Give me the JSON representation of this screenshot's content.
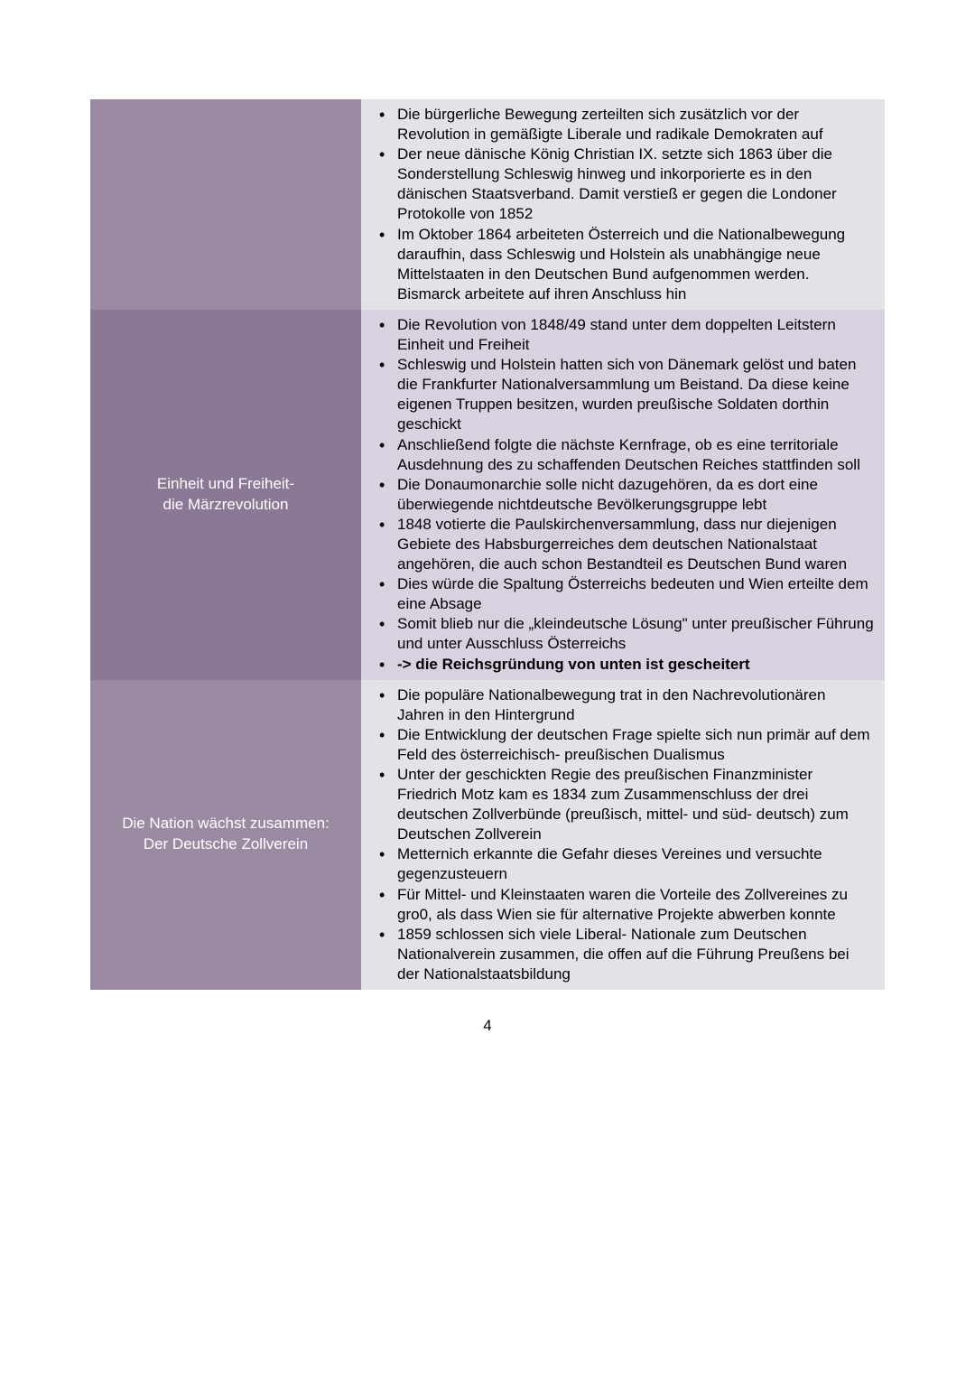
{
  "colors": {
    "row_a_left": "#9b8ba2",
    "row_a_right": "#e5e1e9",
    "row_b_left": "#8a7894",
    "row_b_right": "#d8d1df",
    "left_text": "#ffffff",
    "right_text": "#000000",
    "page_bg": "#ffffff"
  },
  "page_number": "4",
  "rows": [
    {
      "heading_lines": [],
      "bullets": [
        {
          "text": "Die bürgerliche Bewegung zerteilten sich zusätzlich vor der Revolution in gemäßigte Liberale und radikale Demokraten auf",
          "bold": false
        },
        {
          "text": "Der neue dänische König Christian IX. setzte sich 1863 über die Sonderstellung Schleswig hinweg und inkorporierte es in den dänischen Staatsverband. Damit verstieß er gegen die Londoner Protokolle von 1852",
          "bold": false
        },
        {
          "text": "Im Oktober 1864 arbeiteten Österreich und die Nationalbewegung daraufhin, dass Schleswig und Holstein als unabhängige neue Mittelstaaten in den Deutschen Bund aufgenommen werden. Bismarck arbeitete auf ihren Anschluss hin",
          "bold": false
        }
      ]
    },
    {
      "heading_lines": [
        "Einheit und Freiheit-",
        "die Märzrevolution"
      ],
      "bullets": [
        {
          "text": "Die Revolution von 1848/49 stand unter dem doppelten Leitstern Einheit und Freiheit",
          "bold": false
        },
        {
          "text": "Schleswig und Holstein hatten sich von Dänemark gelöst und baten die Frankfurter Nationalversammlung um Beistand. Da diese keine eigenen Truppen besitzen, wurden preußische Soldaten dorthin geschickt",
          "bold": false
        },
        {
          "text": "Anschließend folgte die nächste Kernfrage, ob es eine territoriale Ausdehnung des zu schaffenden Deutschen Reiches stattfinden soll",
          "bold": false
        },
        {
          "text": "Die Donaumonarchie solle nicht dazugehören, da es dort eine überwiegende nichtdeutsche Bevölkerungsgruppe lebt",
          "bold": false
        },
        {
          "text": "1848 votierte die Paulskirchenversammlung, dass nur diejenigen Gebiete des Habsburgerreiches dem deutschen Nationalstaat angehören, die auch schon Bestandteil es Deutschen Bund waren",
          "bold": false
        },
        {
          "text": "Dies würde die Spaltung Österreichs bedeuten und Wien erteilte dem eine Absage",
          "bold": false
        },
        {
          "text": "Somit blieb nur die „kleindeutsche Lösung\" unter preußischer Führung und unter Ausschluss Österreichs",
          "bold": false
        },
        {
          "text": "-> die Reichsgründung von unten ist gescheitert",
          "bold": true
        }
      ]
    },
    {
      "heading_lines": [
        "Die Nation wächst zusammen:",
        "Der Deutsche Zollverein"
      ],
      "bullets": [
        {
          "text": "Die populäre Nationalbewegung trat in den Nachrevolutionären Jahren in den Hintergrund",
          "bold": false
        },
        {
          "text": "Die Entwicklung der deutschen Frage spielte sich nun primär auf dem Feld des österreichisch- preußischen Dualismus",
          "bold": false
        },
        {
          "text": "Unter der geschickten Regie des preußischen Finanzminister Friedrich Motz kam es 1834 zum Zusammenschluss der drei deutschen Zollverbünde (preußisch, mittel- und süd- deutsch) zum Deutschen Zollverein",
          "bold": false
        },
        {
          "text": "Metternich erkannte die Gefahr dieses Vereines und versuchte gegenzusteuern",
          "bold": false
        },
        {
          "text": "Für Mittel- und Kleinstaaten waren die Vorteile des Zollvereines zu gro0, als dass Wien sie für alternative Projekte abwerben konnte",
          "bold": false
        },
        {
          "text": "1859 schlossen sich viele Liberal- Nationale zum Deutschen Nationalverein zusammen, die offen auf die Führung Preußens bei der Nationalstaatsbildung",
          "bold": false
        }
      ]
    }
  ]
}
